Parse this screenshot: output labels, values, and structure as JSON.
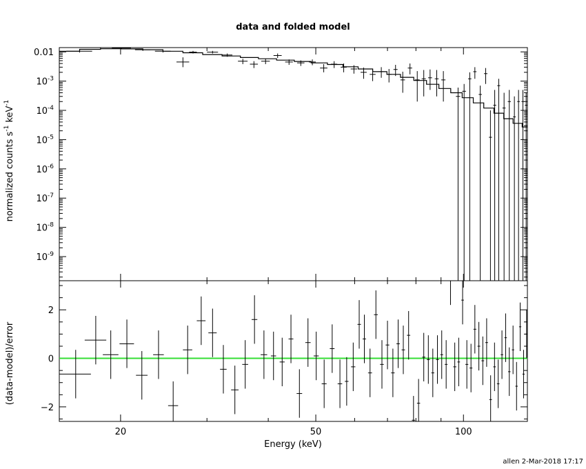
{
  "title": "data and folded model",
  "footer": "allen   2-Mar-2018 17:17",
  "chart_data": [
    {
      "type": "scatter",
      "panel": "top",
      "title": "data and folded model",
      "xlabel": "",
      "ylabel": "normalized counts s^-1 keV^-1",
      "ylabel_parts": [
        "normalized counts s",
        "-1",
        "  keV",
        "-1"
      ],
      "xscale": "log",
      "yscale": "log",
      "xlim": [
        15,
        135
      ],
      "ylim": [
        1.5e-10,
        0.014
      ],
      "yticks": [
        1e-09,
        1e-08,
        1e-07,
        1e-06,
        1e-05,
        0.0001,
        0.001,
        0.01
      ],
      "ytick_labels": [
        {
          "mant": "10",
          "exp": "-9"
        },
        {
          "mant": "10",
          "exp": "-8"
        },
        {
          "mant": "10",
          "exp": "-7"
        },
        {
          "mant": "10",
          "exp": "-6"
        },
        {
          "mant": "10",
          "exp": "-5"
        },
        {
          "mant": "10",
          "exp": "-4"
        },
        {
          "mant": "10",
          "exp": "-3"
        },
        {
          "mant": "",
          "exp": "",
          "plain": "0.01"
        }
      ],
      "model_step": {
        "edges": [
          15,
          16.5,
          18.2,
          20.1,
          22.2,
          24.4,
          26.8,
          29.4,
          32.2,
          35.1,
          38.2,
          41.6,
          45.2,
          48.9,
          52.8,
          56.8,
          61,
          65.3,
          69.8,
          74.4,
          79.2,
          84.1,
          89.1,
          94.2,
          99.4,
          104.7,
          110,
          115.4,
          120.8,
          126.2,
          131.7,
          135
        ],
        "values": [
          0.0105,
          0.0122,
          0.0128,
          0.0126,
          0.0118,
          0.0105,
          0.0093,
          0.0081,
          0.0072,
          0.0064,
          0.0058,
          0.0052,
          0.0047,
          0.0042,
          0.0037,
          0.0031,
          0.0026,
          0.0021,
          0.0017,
          0.00135,
          0.00105,
          0.00078,
          0.00056,
          0.0004,
          0.00027,
          0.00018,
          0.00012,
          8e-05,
          5.2e-05,
          3.6e-05,
          2.7e-05
        ]
      },
      "series": [
        {
          "points": [
            {
              "x": 16.5,
              "xerr": 1.0,
              "y": 0.0105,
              "yerr_lo": 0.0095,
              "yerr_hi": 0.0115
            },
            {
              "x": 18.2,
              "xerr": 0.7,
              "y": 0.0142,
              "yerr_lo": 0.0132,
              "yerr_hi": 0.0152
            },
            {
              "x": 20.1,
              "xerr": 0.9,
              "y": 0.0135,
              "yerr_lo": 0.0125,
              "yerr_hi": 0.0145
            },
            {
              "x": 22.2,
              "xerr": 0.8,
              "y": 0.0118,
              "yerr_lo": 0.0108,
              "yerr_hi": 0.0128
            },
            {
              "x": 24.4,
              "xerr": 0.9,
              "y": 0.0105,
              "yerr_lo": 0.0095,
              "yerr_hi": 0.0115
            },
            {
              "x": 26.8,
              "xerr": 0.8,
              "y": 0.0045,
              "yerr_lo": 0.003,
              "yerr_hi": 0.0065
            },
            {
              "x": 28.1,
              "xerr": 0.5,
              "y": 0.0098,
              "yerr_lo": 0.0088,
              "yerr_hi": 0.0108
            },
            {
              "x": 30.8,
              "xerr": 0.8,
              "y": 0.0098,
              "yerr_lo": 0.0088,
              "yerr_hi": 0.0108
            },
            {
              "x": 33.0,
              "xerr": 0.8,
              "y": 0.0078,
              "yerr_lo": 0.0068,
              "yerr_hi": 0.0088
            },
            {
              "x": 35.5,
              "xerr": 0.8,
              "y": 0.0048,
              "yerr_lo": 0.0038,
              "yerr_hi": 0.0058
            },
            {
              "x": 37.4,
              "xerr": 0.7,
              "y": 0.0038,
              "yerr_lo": 0.0028,
              "yerr_hi": 0.0048
            },
            {
              "x": 39.5,
              "xerr": 0.8,
              "y": 0.0048,
              "yerr_lo": 0.0038,
              "yerr_hi": 0.0058
            },
            {
              "x": 41.8,
              "xerr": 0.8,
              "y": 0.0075,
              "yerr_lo": 0.0062,
              "yerr_hi": 0.0088
            },
            {
              "x": 44.1,
              "xerr": 0.8,
              "y": 0.0045,
              "yerr_lo": 0.0036,
              "yerr_hi": 0.0055
            },
            {
              "x": 46.6,
              "xerr": 0.8,
              "y": 0.0042,
              "yerr_lo": 0.0033,
              "yerr_hi": 0.0051
            },
            {
              "x": 49.2,
              "xerr": 0.8,
              "y": 0.0045,
              "yerr_lo": 0.0035,
              "yerr_hi": 0.0055
            },
            {
              "x": 51.9,
              "xerr": 0.9,
              "y": 0.0028,
              "yerr_lo": 0.002,
              "yerr_hi": 0.0038
            },
            {
              "x": 54.5,
              "xerr": 0.8,
              "y": 0.0038,
              "yerr_lo": 0.0028,
              "yerr_hi": 0.0048
            },
            {
              "x": 57.0,
              "xerr": 0.8,
              "y": 0.003,
              "yerr_lo": 0.002,
              "yerr_hi": 0.004
            },
            {
              "x": 59.8,
              "xerr": 0.9,
              "y": 0.0026,
              "yerr_lo": 0.0018,
              "yerr_hi": 0.0035
            },
            {
              "x": 62.6,
              "xerr": 0.9,
              "y": 0.002,
              "yerr_lo": 0.0012,
              "yerr_hi": 0.0029
            },
            {
              "x": 65.3,
              "xerr": 0.9,
              "y": 0.0017,
              "yerr_lo": 0.001,
              "yerr_hi": 0.0026
            },
            {
              "x": 68.0,
              "xerr": 0.9,
              "y": 0.0021,
              "yerr_lo": 0.0013,
              "yerr_hi": 0.003
            },
            {
              "x": 70.5,
              "xerr": 0.8,
              "y": 0.0017,
              "yerr_lo": 0.0009,
              "yerr_hi": 0.0026
            },
            {
              "x": 72.7,
              "xerr": 0.7,
              "y": 0.0025,
              "yerr_lo": 0.0015,
              "yerr_hi": 0.0036
            },
            {
              "x": 75.2,
              "xerr": 0.8,
              "y": 0.0011,
              "yerr_lo": 0.0004,
              "yerr_hi": 0.0021
            },
            {
              "x": 77.8,
              "xerr": 0.8,
              "y": 0.0028,
              "yerr_lo": 0.0017,
              "yerr_hi": 0.004
            },
            {
              "x": 80.5,
              "xerr": 0.9,
              "y": 0.0011,
              "yerr_lo": 0.0002,
              "yerr_hi": 0.0022
            },
            {
              "x": 83.0,
              "xerr": 0.8,
              "y": 0.0012,
              "yerr_lo": 0.0003,
              "yerr_hi": 0.0024
            },
            {
              "x": 85.5,
              "xerr": 0.8,
              "y": 0.0013,
              "yerr_lo": 0.0005,
              "yerr_hi": 0.0025
            },
            {
              "x": 88.2,
              "xerr": 0.8,
              "y": 0.0012,
              "yerr_lo": 0.0003,
              "yerr_hi": 0.0024
            },
            {
              "x": 91.0,
              "xerr": 0.9,
              "y": 0.0011,
              "yerr_lo": 0.0002,
              "yerr_hi": 0.0022
            },
            {
              "x": 97.5,
              "xerr": 1.0,
              "y": 0.0003,
              "yerr_lo": 1.5e-10,
              "yerr_hi": 0.0006
            },
            {
              "x": 100.3,
              "xerr": 0.9,
              "y": 0.00045,
              "yerr_lo": 1.5e-10,
              "yerr_hi": 0.0008
            },
            {
              "x": 103.0,
              "xerr": 0.8,
              "y": 0.0012,
              "yerr_lo": 1.5e-10,
              "yerr_hi": 0.002
            },
            {
              "x": 105.5,
              "xerr": 0.8,
              "y": 0.0021,
              "yerr_lo": 0.0012,
              "yerr_hi": 0.003
            },
            {
              "x": 108.2,
              "xerr": 0.8,
              "y": 0.00035,
              "yerr_lo": 1.5e-10,
              "yerr_hi": 0.0007
            },
            {
              "x": 111.0,
              "xerr": 0.9,
              "y": 0.0018,
              "yerr_lo": 0.0008,
              "yerr_hi": 0.0028
            },
            {
              "x": 113.5,
              "xerr": 0.8,
              "y": 1.2e-05,
              "yerr_lo": 1.5e-10,
              "yerr_hi": 0.0001
            },
            {
              "x": 115.8,
              "xerr": 0.8,
              "y": 0.00015,
              "yerr_lo": 1.5e-10,
              "yerr_hi": 0.0005
            },
            {
              "x": 118.0,
              "xerr": 0.8,
              "y": 0.0007,
              "yerr_lo": 1.5e-10,
              "yerr_hi": 0.0012
            },
            {
              "x": 121.0,
              "xerr": 0.9,
              "y": 0.00012,
              "yerr_lo": 1.5e-10,
              "yerr_hi": 0.0004
            },
            {
              "x": 124.0,
              "xerr": 0.9,
              "y": 0.0002,
              "yerr_lo": 1.5e-10,
              "yerr_hi": 0.0005
            },
            {
              "x": 127.0,
              "xerr": 0.8,
              "y": 6e-05,
              "yerr_lo": 1.5e-10,
              "yerr_hi": 0.0003
            },
            {
              "x": 129.5,
              "xerr": 0.8,
              "y": 0.0002,
              "yerr_lo": 1.5e-10,
              "yerr_hi": 0.0005
            },
            {
              "x": 132.2,
              "xerr": 0.9,
              "y": 0.0002,
              "yerr_lo": 1.5e-10,
              "yerr_hi": 0.0005
            },
            {
              "x": 134.2,
              "xerr": 0.8,
              "y": 0.00015,
              "yerr_lo": 1.5e-10,
              "yerr_hi": 0.0004
            }
          ]
        }
      ]
    },
    {
      "type": "scatter",
      "panel": "bottom",
      "xlabel": "Energy (keV)",
      "ylabel": "(data-model)/error",
      "xscale": "log",
      "xlim": [
        15,
        135
      ],
      "ylim": [
        -2.6,
        3.2
      ],
      "xticks": [
        20,
        50,
        100
      ],
      "xtick_labels": [
        "20",
        "50",
        "100"
      ],
      "yticks": [
        -2,
        0,
        2
      ],
      "ytick_labels": [
        "−2",
        "0",
        "2"
      ],
      "reference_line": {
        "y": 0,
        "color": "#33dd33"
      },
      "series": [
        {
          "points": [
            {
              "x": 16.2,
              "xerr": 1.2,
              "y": -0.65,
              "yerr": 1.0
            },
            {
              "x": 17.8,
              "xerr": 0.9,
              "y": 0.75,
              "yerr": 1.0
            },
            {
              "x": 19.1,
              "xerr": 0.7,
              "y": 0.15,
              "yerr": 1.0
            },
            {
              "x": 20.6,
              "xerr": 0.7,
              "y": 0.6,
              "yerr": 1.0
            },
            {
              "x": 22.1,
              "xerr": 0.6,
              "y": -0.7,
              "yerr": 1.0
            },
            {
              "x": 23.9,
              "xerr": 0.6,
              "y": 0.15,
              "yerr": 1.0
            },
            {
              "x": 25.6,
              "xerr": 0.6,
              "y": -1.95,
              "yerr": 1.0
            },
            {
              "x": 27.4,
              "xerr": 0.6,
              "y": 0.35,
              "yerr": 1.0
            },
            {
              "x": 29.2,
              "xerr": 0.6,
              "y": 1.55,
              "yerr": 1.0
            },
            {
              "x": 30.8,
              "xerr": 0.6,
              "y": 1.05,
              "yerr": 1.0
            },
            {
              "x": 32.4,
              "xerr": 0.5,
              "y": -0.45,
              "yerr": 1.0
            },
            {
              "x": 34.2,
              "xerr": 0.6,
              "y": -1.3,
              "yerr": 1.0
            },
            {
              "x": 35.9,
              "xerr": 0.5,
              "y": -0.25,
              "yerr": 1.0
            },
            {
              "x": 37.5,
              "xerr": 0.5,
              "y": 1.6,
              "yerr": 1.0
            },
            {
              "x": 39.2,
              "xerr": 0.6,
              "y": 0.15,
              "yerr": 1.0
            },
            {
              "x": 41.0,
              "xerr": 0.5,
              "y": 0.1,
              "yerr": 1.0
            },
            {
              "x": 42.7,
              "xerr": 0.5,
              "y": -0.15,
              "yerr": 1.0
            },
            {
              "x": 44.5,
              "xerr": 0.5,
              "y": 0.8,
              "yerr": 1.0
            },
            {
              "x": 46.3,
              "xerr": 0.6,
              "y": -1.45,
              "yerr": 1.0
            },
            {
              "x": 48.2,
              "xerr": 0.6,
              "y": 0.65,
              "yerr": 1.0
            },
            {
              "x": 50.1,
              "xerr": 0.6,
              "y": 0.1,
              "yerr": 1.0
            },
            {
              "x": 52.0,
              "xerr": 0.6,
              "y": -1.05,
              "yerr": 1.0
            },
            {
              "x": 54.0,
              "xerr": 0.6,
              "y": 0.4,
              "yerr": 1.0
            },
            {
              "x": 56.0,
              "xerr": 0.6,
              "y": -1.05,
              "yerr": 1.0
            },
            {
              "x": 57.8,
              "xerr": 0.5,
              "y": -0.95,
              "yerr": 1.0
            },
            {
              "x": 59.6,
              "xerr": 0.6,
              "y": -0.35,
              "yerr": 1.0
            },
            {
              "x": 61.3,
              "xerr": 0.5,
              "y": 1.4,
              "yerr": 1.0
            },
            {
              "x": 62.8,
              "xerr": 0.5,
              "y": 0.8,
              "yerr": 1.0
            },
            {
              "x": 64.5,
              "xerr": 0.6,
              "y": -0.6,
              "yerr": 1.0
            },
            {
              "x": 66.3,
              "xerr": 0.6,
              "y": 1.8,
              "yerr": 1.0
            },
            {
              "x": 68.2,
              "xerr": 0.6,
              "y": -0.25,
              "yerr": 1.0
            },
            {
              "x": 70.0,
              "xerr": 0.6,
              "y": 0.55,
              "yerr": 1.0
            },
            {
              "x": 71.8,
              "xerr": 0.6,
              "y": -0.6,
              "yerr": 1.0
            },
            {
              "x": 73.6,
              "xerr": 0.6,
              "y": 0.6,
              "yerr": 1.0
            },
            {
              "x": 75.4,
              "xerr": 0.6,
              "y": 0.35,
              "yerr": 1.0
            },
            {
              "x": 77.3,
              "xerr": 0.6,
              "y": 0.95,
              "yerr": 1.0
            },
            {
              "x": 79.1,
              "xerr": 0.6,
              "y": -2.55,
              "yerr": 1.0
            },
            {
              "x": 81.0,
              "xerr": 0.6,
              "y": -1.85,
              "yerr": 1.0
            },
            {
              "x": 83.0,
              "xerr": 0.6,
              "y": 0.05,
              "yerr": 1.0
            },
            {
              "x": 84.8,
              "xerr": 0.6,
              "y": -0.05,
              "yerr": 1.0
            },
            {
              "x": 86.6,
              "xerr": 0.6,
              "y": -0.6,
              "yerr": 1.0
            },
            {
              "x": 88.5,
              "xerr": 0.6,
              "y": -0.05,
              "yerr": 1.0
            },
            {
              "x": 90.3,
              "xerr": 0.6,
              "y": 0.15,
              "yerr": 1.0
            },
            {
              "x": 92.2,
              "xerr": 0.6,
              "y": -0.25,
              "yerr": 1.0
            },
            {
              "x": 94.1,
              "xerr": 0.7,
              "y": 3.2,
              "yerr": 1.0
            },
            {
              "x": 96.0,
              "xerr": 0.7,
              "y": -0.35,
              "yerr": 1.0
            },
            {
              "x": 97.8,
              "xerr": 0.6,
              "y": -0.15,
              "yerr": 1.0
            },
            {
              "x": 99.6,
              "xerr": 0.6,
              "y": 2.4,
              "yerr": 1.0
            },
            {
              "x": 101.6,
              "xerr": 0.7,
              "y": -0.25,
              "yerr": 1.0
            },
            {
              "x": 103.6,
              "xerr": 0.7,
              "y": -0.4,
              "yerr": 1.0
            },
            {
              "x": 105.5,
              "xerr": 0.7,
              "y": 1.2,
              "yerr": 1.0
            },
            {
              "x": 107.5,
              "xerr": 0.7,
              "y": 0.5,
              "yerr": 1.0
            },
            {
              "x": 109.5,
              "xerr": 0.7,
              "y": -0.1,
              "yerr": 1.0
            },
            {
              "x": 111.5,
              "xerr": 0.7,
              "y": 0.65,
              "yerr": 1.0
            },
            {
              "x": 113.6,
              "xerr": 0.7,
              "y": -1.7,
              "yerr": 1.0
            },
            {
              "x": 115.7,
              "xerr": 0.7,
              "y": -0.35,
              "yerr": 1.0
            },
            {
              "x": 117.7,
              "xerr": 0.7,
              "y": -1.05,
              "yerr": 1.0
            },
            {
              "x": 119.8,
              "xerr": 0.7,
              "y": 0.15,
              "yerr": 1.0
            },
            {
              "x": 121.9,
              "xerr": 0.7,
              "y": 0.85,
              "yerr": 1.0
            },
            {
              "x": 124.0,
              "xerr": 0.7,
              "y": -0.55,
              "yerr": 1.0
            },
            {
              "x": 126.2,
              "xerr": 0.7,
              "y": 0.35,
              "yerr": 1.0
            },
            {
              "x": 128.3,
              "xerr": 0.7,
              "y": -1.15,
              "yerr": 1.0
            },
            {
              "x": 130.5,
              "xerr": 0.7,
              "y": 1.3,
              "yerr": 1.0
            },
            {
              "x": 132.6,
              "xerr": 0.7,
              "y": -0.65,
              "yerr": 1.0
            },
            {
              "x": 134.5,
              "xerr": 0.6,
              "y": 1.0,
              "yerr": 1.0
            }
          ]
        }
      ]
    }
  ]
}
